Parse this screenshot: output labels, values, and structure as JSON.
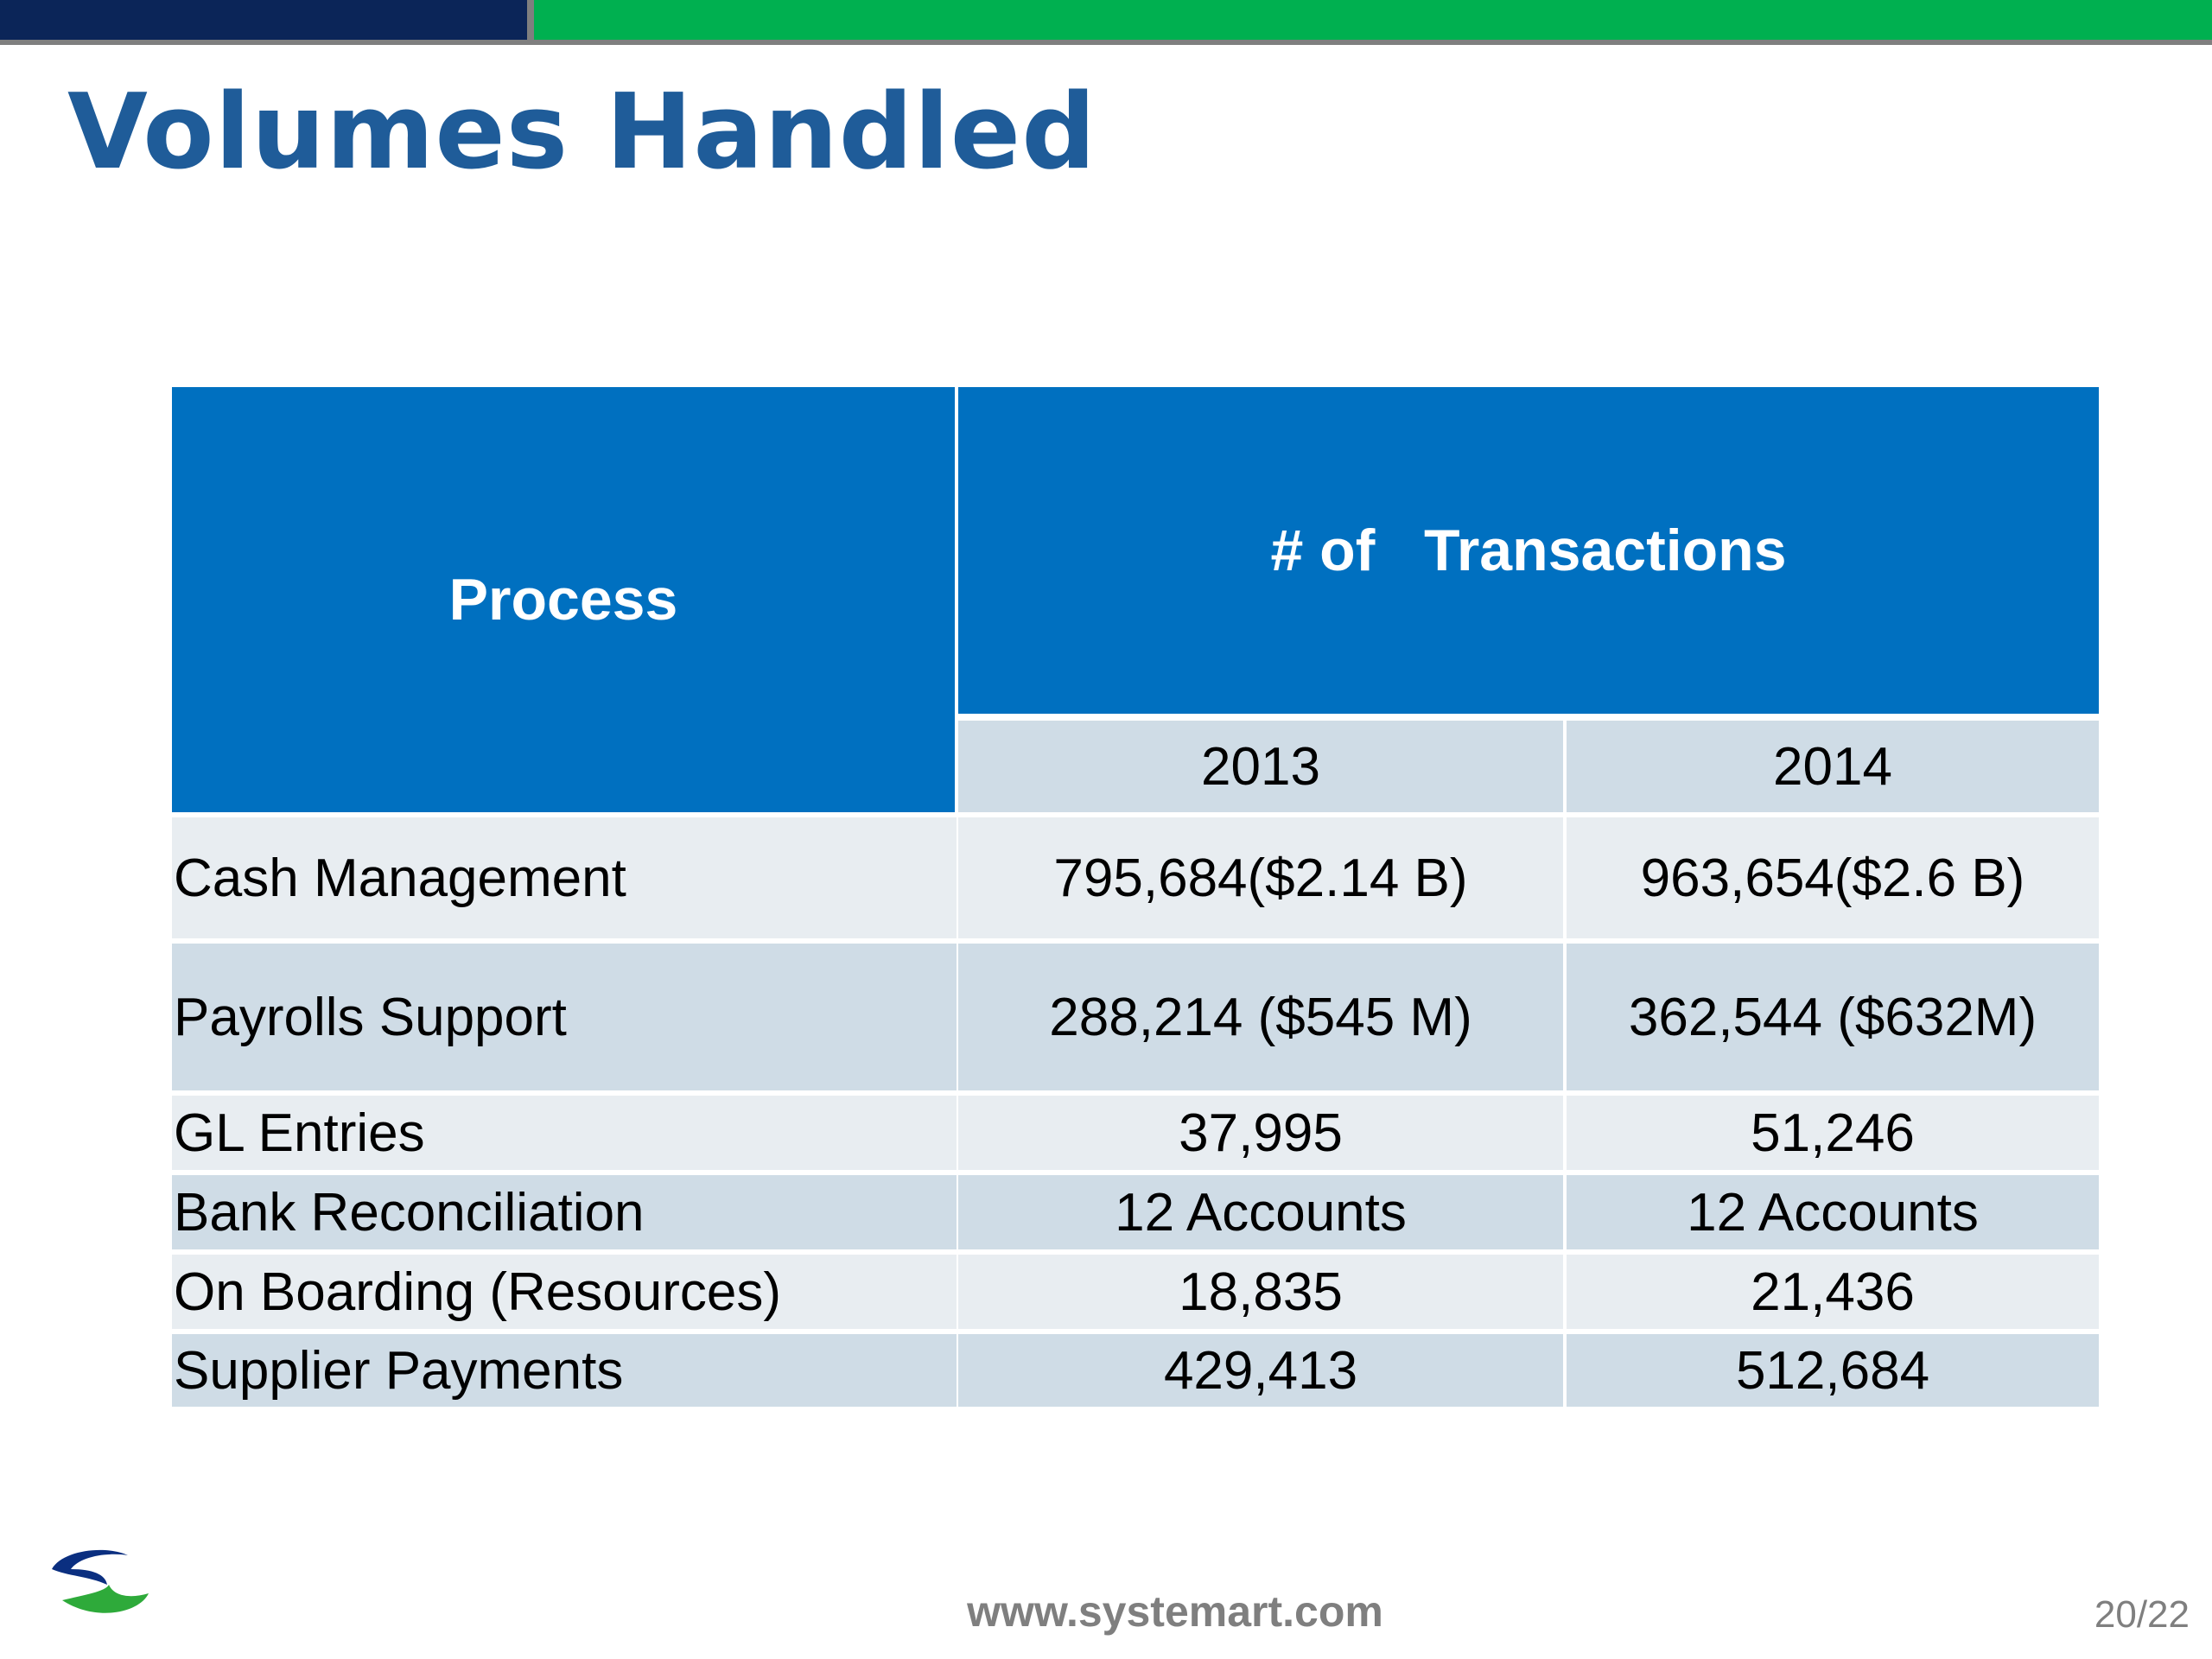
{
  "slide": {
    "title": "Volumes Handled",
    "footer_url": "www.systemart.com",
    "page_number": "20/22"
  },
  "table": {
    "header_process": "Process",
    "header_transactions": "# of   Transactions",
    "years": [
      "2013",
      "2014"
    ],
    "rows": [
      {
        "process": "Cash Management",
        "y2013": "795,684($2.14 B)",
        "y2014": "963,654($2.6 B)"
      },
      {
        "process": "Payrolls Support",
        "y2013": "288,214 ($545 M)",
        "y2014": "362,544 ($632M)"
      },
      {
        "process": "GL Entries",
        "y2013": "37,995",
        "y2014": "51,246"
      },
      {
        "process": "Bank Reconciliation",
        "y2013": "12 Accounts",
        "y2014": "12 Accounts"
      },
      {
        "process": "On Boarding (Resources)",
        "y2013": "18,835",
        "y2014": "21,436"
      },
      {
        "process": "Supplier Payments",
        "y2013": "429,413",
        "y2014": "512,684"
      }
    ]
  },
  "colors": {
    "title": "#1f5c99",
    "header_blue": "#0070c0",
    "row_light": "#e8edf1",
    "row_dark": "#cfdce6",
    "bar_navy": "#0b2558",
    "bar_green": "#00b050"
  },
  "icons": {
    "logo": "systemart-logo"
  }
}
